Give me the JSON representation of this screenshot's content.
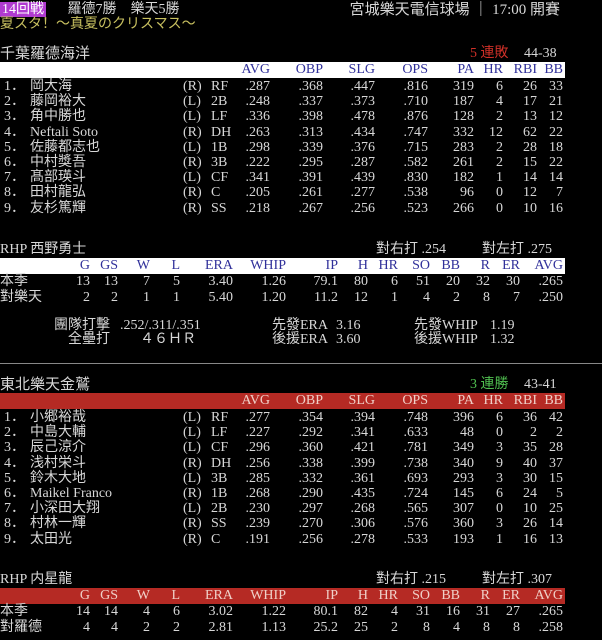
{
  "header": {
    "round": "14回戦",
    "record": "羅德7勝　樂天5勝",
    "venue": "宮城樂天電信球場 ｜ 17:00 開賽",
    "subtitle": "夏スタ！～真夏のクリスマス～"
  },
  "batting_headers": [
    "AVG",
    "OBP",
    "SLG",
    "OPS",
    "PA",
    "HR",
    "RBI",
    "BB"
  ],
  "pitching_headers": [
    "G",
    "GS",
    "W",
    "L",
    "ERA",
    "WHIP",
    "IP",
    "H",
    "HR",
    "SO",
    "BB",
    "R",
    "ER",
    "AVG"
  ],
  "colors": {
    "header_bar_away": "#ffffff",
    "header_bar_home": "#b52a24",
    "losing_streak": "#d03028",
    "winning_streak": "#50c050",
    "badge": "#b03ad0"
  },
  "away": {
    "team": "千葉羅德海洋",
    "streak": "5 連敗",
    "record": "44-38",
    "lineup": [
      [
        "1．",
        "岡大海",
        "(R)",
        "RF",
        ".287",
        ".368",
        ".447",
        ".816",
        "319",
        "6",
        "26",
        "33"
      ],
      [
        "2．",
        "藤岡裕大",
        "(L)",
        "2B",
        ".248",
        ".337",
        ".373",
        ".710",
        "187",
        "4",
        "17",
        "21"
      ],
      [
        "3．",
        "角中勝也",
        "(L)",
        "LF",
        ".336",
        ".398",
        ".478",
        ".876",
        "128",
        "2",
        "13",
        "12"
      ],
      [
        "4．",
        "Neftali Soto",
        "(R)",
        "DH",
        ".263",
        ".313",
        ".434",
        ".747",
        "332",
        "12",
        "62",
        "22"
      ],
      [
        "5．",
        "佐藤都志也",
        "(L)",
        "1B",
        ".298",
        ".339",
        ".376",
        ".715",
        "283",
        "2",
        "28",
        "18"
      ],
      [
        "6．",
        "中村獎吾",
        "(R)",
        "3B",
        ".222",
        ".295",
        ".287",
        ".582",
        "261",
        "2",
        "15",
        "22"
      ],
      [
        "7．",
        "髙部瑛斗",
        "(L)",
        "CF",
        ".341",
        ".391",
        ".439",
        ".830",
        "182",
        "1",
        "14",
        "14"
      ],
      [
        "8．",
        "田村龍弘",
        "(R)",
        "C",
        ".205",
        ".261",
        ".277",
        ".538",
        "96",
        "0",
        "12",
        "7"
      ],
      [
        "9．",
        "友杉篤輝",
        "(R)",
        "SS",
        ".218",
        ".267",
        ".256",
        ".523",
        "266",
        "0",
        "10",
        "16"
      ]
    ],
    "pitcher": {
      "label": "RHP 西野勇士",
      "vs_right": "對右打 .254",
      "vs_left": "對左打 .275",
      "rows": [
        [
          "本季",
          "13",
          "13",
          "7",
          "5",
          "3.40",
          "1.26",
          "79.1",
          "80",
          "6",
          "51",
          "20",
          "32",
          "30",
          ".265"
        ],
        [
          "對樂天",
          "2",
          "2",
          "1",
          "1",
          "5.40",
          "1.20",
          "11.2",
          "12",
          "1",
          "4",
          "2",
          "8",
          "7",
          ".250"
        ]
      ]
    },
    "team_stats": {
      "batting_label": "團隊打擊",
      "batting_value": ".252/.311/.351",
      "hr_label": "全壘打",
      "hr_value": "４６ＨＲ",
      "sp_era_label": "先發ERA",
      "sp_era": "3.16",
      "rp_era_label": "後援ERA",
      "rp_era": "3.60",
      "sp_whip_label": "先發WHIP",
      "sp_whip": "1.19",
      "rp_whip_label": "後援WHIP",
      "rp_whip": "1.32"
    }
  },
  "home": {
    "team": "東北樂天金鷲",
    "streak": "3 連勝",
    "record": "43-41",
    "lineup": [
      [
        "1．",
        "小郷裕哉",
        "(L)",
        "RF",
        ".277",
        ".354",
        ".394",
        ".748",
        "396",
        "6",
        "36",
        "42"
      ],
      [
        "2．",
        "中島大輔",
        "(L)",
        "LF",
        ".227",
        ".292",
        ".341",
        ".633",
        "48",
        "0",
        "2",
        "2"
      ],
      [
        "3．",
        "辰己涼介",
        "(L)",
        "CF",
        ".296",
        ".360",
        ".421",
        ".781",
        "349",
        "3",
        "35",
        "28"
      ],
      [
        "4．",
        "浅村栄斗",
        "(R)",
        "DH",
        ".256",
        ".338",
        ".399",
        ".738",
        "340",
        "9",
        "40",
        "37"
      ],
      [
        "5．",
        "鈴木大地",
        "(L)",
        "3B",
        ".285",
        ".332",
        ".361",
        ".693",
        "293",
        "3",
        "30",
        "15"
      ],
      [
        "6．",
        "Maikel Franco",
        "(R)",
        "1B",
        ".268",
        ".290",
        ".435",
        ".724",
        "145",
        "6",
        "24",
        "5"
      ],
      [
        "7．",
        "小深田大翔",
        "(L)",
        "2B",
        ".230",
        ".297",
        ".268",
        ".565",
        "307",
        "0",
        "10",
        "25"
      ],
      [
        "8．",
        "村林一輝",
        "(R)",
        "SS",
        ".239",
        ".270",
        ".306",
        ".576",
        "360",
        "3",
        "26",
        "14"
      ],
      [
        "9．",
        "太田光",
        "(R)",
        "C",
        ".191",
        ".256",
        ".278",
        ".533",
        "193",
        "1",
        "16",
        "13"
      ]
    ],
    "pitcher": {
      "label": "RHP 内星龍",
      "vs_right": "對右打 .215",
      "vs_left": "對左打 .307",
      "rows": [
        [
          "本季",
          "14",
          "14",
          "4",
          "6",
          "3.02",
          "1.22",
          "80.1",
          "82",
          "4",
          "31",
          "16",
          "31",
          "27",
          ".265"
        ],
        [
          "對羅德",
          "4",
          "4",
          "2",
          "2",
          "2.81",
          "1.13",
          "25.2",
          "25",
          "2",
          "8",
          "4",
          "8",
          "8",
          ".258"
        ]
      ]
    }
  }
}
